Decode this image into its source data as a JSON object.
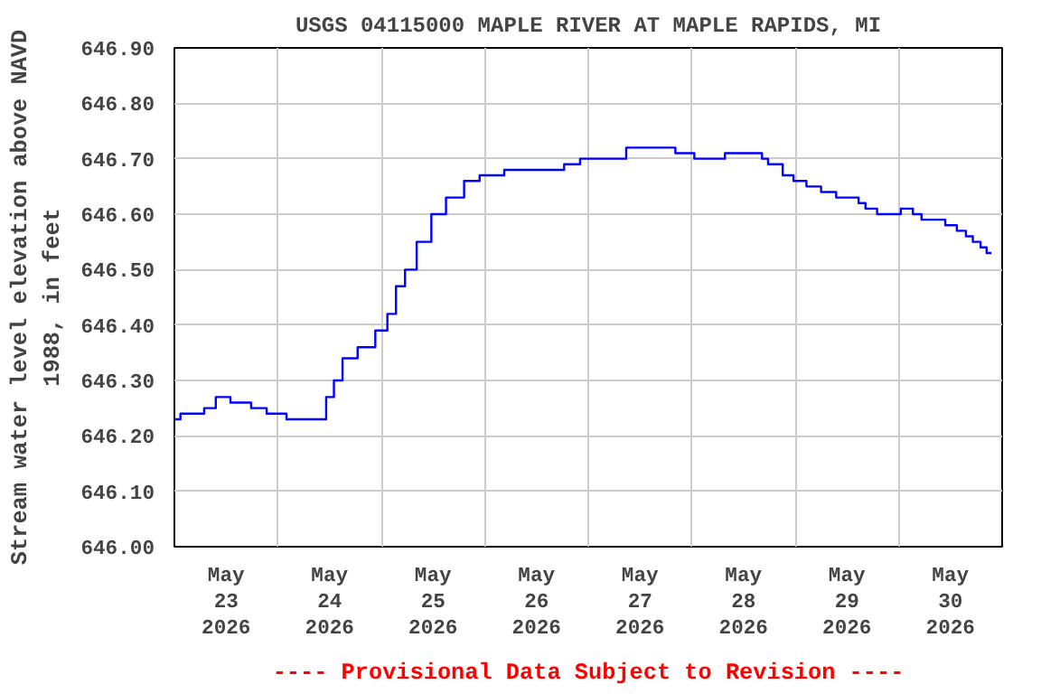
{
  "chart_data": {
    "type": "step",
    "title": "USGS 04115000 MAPLE RIVER AT MAPLE RAPIDS, MI",
    "ylabel": "Stream water level elevation above NAVD\n1988, in feet",
    "annotations": [
      "---- Provisional Data Subject to Revision ----"
    ],
    "x": [
      "2026-05-23T00:00",
      "2026-05-23T01:24",
      "2026-05-23T06:54",
      "2026-05-23T09:36",
      "2026-05-23T13:00",
      "2026-05-23T17:48",
      "2026-05-23T21:24",
      "2026-05-24T02:00",
      "2026-05-24T11:12",
      "2026-05-24T13:00",
      "2026-05-24T15:00",
      "2026-05-24T18:30",
      "2026-05-24T22:36",
      "2026-05-25T01:24",
      "2026-05-25T03:24",
      "2026-05-25T05:30",
      "2026-05-25T08:12",
      "2026-05-25T11:36",
      "2026-05-25T15:00",
      "2026-05-25T19:12",
      "2026-05-25T22:48",
      "2026-05-26T04:30",
      "2026-05-26T18:24",
      "2026-05-26T22:06",
      "2026-05-27T06:24",
      "2026-05-27T08:48",
      "2026-05-27T20:12",
      "2026-05-28T00:36",
      "2026-05-28T07:42",
      "2026-05-28T16:18",
      "2026-05-28T17:42",
      "2026-05-28T21:06",
      "2026-05-28T23:36",
      "2026-05-29T02:36",
      "2026-05-29T06:00",
      "2026-05-29T09:30",
      "2026-05-29T14:42",
      "2026-05-29T16:18",
      "2026-05-29T19:00",
      "2026-05-30T00:30",
      "2026-05-30T03:18",
      "2026-05-30T05:18",
      "2026-05-30T10:48",
      "2026-05-30T13:30",
      "2026-05-30T15:36",
      "2026-05-30T17:12",
      "2026-05-30T19:00",
      "2026-05-30T20:24",
      "2026-05-30T21:30"
    ],
    "series": [
      {
        "color": "#0000ff",
        "values": [
          646.23,
          646.24,
          646.25,
          646.27,
          646.26,
          646.25,
          646.24,
          646.23,
          646.27,
          646.3,
          646.34,
          646.36,
          646.39,
          646.42,
          646.47,
          646.5,
          646.55,
          646.6,
          646.63,
          646.66,
          646.67,
          646.68,
          646.69,
          646.7,
          646.7,
          646.72,
          646.71,
          646.7,
          646.71,
          646.7,
          646.69,
          646.67,
          646.66,
          646.65,
          646.64,
          646.63,
          646.62,
          646.61,
          646.6,
          646.61,
          646.6,
          646.59,
          646.58,
          646.57,
          646.56,
          646.55,
          646.54,
          646.53,
          646.53
        ]
      }
    ],
    "xlim": [
      "2026-05-23T00:00",
      "2026-05-31T00:00"
    ],
    "xticks": [
      {
        "value": "2026-05-23T12:00",
        "label": "May\n23\n2026"
      },
      {
        "value": "2026-05-24T12:00",
        "label": "May\n24\n2026"
      },
      {
        "value": "2026-05-25T12:00",
        "label": "May\n25\n2026"
      },
      {
        "value": "2026-05-26T12:00",
        "label": "May\n26\n2026"
      },
      {
        "value": "2026-05-27T12:00",
        "label": "May\n27\n2026"
      },
      {
        "value": "2026-05-28T12:00",
        "label": "May\n28\n2026"
      },
      {
        "value": "2026-05-29T12:00",
        "label": "May\n29\n2026"
      },
      {
        "value": "2026-05-30T12:00",
        "label": "May\n30\n2026"
      },
      {
        "value": "2026-05-24T00:00",
        "label": null
      },
      {
        "value": "2026-05-25T00:00",
        "label": null
      },
      {
        "value": "2026-05-26T00:00",
        "label": null
      },
      {
        "value": "2026-05-27T00:00",
        "label": null
      },
      {
        "value": "2026-05-28T00:00",
        "label": null
      },
      {
        "value": "2026-05-29T00:00",
        "label": null
      },
      {
        "value": "2026-05-30T00:00",
        "label": null
      }
    ],
    "ylim": [
      646.0,
      646.9
    ],
    "yticks": [
      {
        "value": 646.0,
        "label": "646.00"
      },
      {
        "value": 646.1,
        "label": "646.10"
      },
      {
        "value": 646.2,
        "label": "646.20"
      },
      {
        "value": 646.3,
        "label": "646.30"
      },
      {
        "value": 646.4,
        "label": "646.40"
      },
      {
        "value": 646.5,
        "label": "646.50"
      },
      {
        "value": 646.6,
        "label": "646.60"
      },
      {
        "value": 646.7,
        "label": "646.70"
      },
      {
        "value": 646.8,
        "label": "646.80"
      },
      {
        "value": 646.9,
        "label": "646.90"
      }
    ],
    "grid": true,
    "line_style": "solid"
  }
}
